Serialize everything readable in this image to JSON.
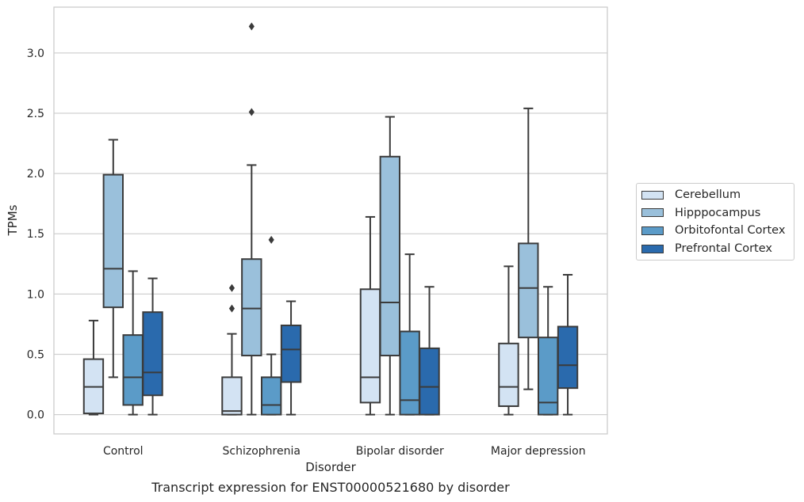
{
  "chart_data": {
    "type": "box",
    "title": "",
    "caption": "Transcript expression for ENST00000521680 by disorder",
    "xlabel": "Disorder",
    "ylabel": "TPMs",
    "ylim": [
      -0.16,
      3.38
    ],
    "yticks": [
      0.0,
      0.5,
      1.0,
      1.5,
      2.0,
      2.5,
      3.0
    ],
    "ytick_labels": [
      "0.0",
      "0.5",
      "1.0",
      "1.5",
      "2.0",
      "2.5",
      "3.0"
    ],
    "grid": true,
    "legend_position": "right",
    "categories": [
      "Control",
      "Schizophrenia",
      "Bipolar disorder",
      "Major depression"
    ],
    "series": [
      {
        "name": "Cerebellum",
        "color": "#d3e3f3",
        "boxes": [
          {
            "whislo": 0.0,
            "q1": 0.01,
            "med": 0.23,
            "q3": 0.46,
            "whishi": 0.78,
            "fliers": []
          },
          {
            "whislo": 0.0,
            "q1": 0.0,
            "med": 0.03,
            "q3": 0.31,
            "whishi": 0.67,
            "fliers": [
              0.88,
              1.05
            ]
          },
          {
            "whislo": 0.0,
            "q1": 0.1,
            "med": 0.31,
            "q3": 1.04,
            "whishi": 1.64,
            "fliers": []
          },
          {
            "whislo": 0.0,
            "q1": 0.07,
            "med": 0.23,
            "q3": 0.59,
            "whishi": 1.23,
            "fliers": []
          }
        ]
      },
      {
        "name": "Hipppocampus",
        "color": "#9ac0db",
        "boxes": [
          {
            "whislo": 0.31,
            "q1": 0.89,
            "med": 1.21,
            "q3": 1.99,
            "whishi": 2.28,
            "fliers": []
          },
          {
            "whislo": 0.0,
            "q1": 0.49,
            "med": 0.88,
            "q3": 1.29,
            "whishi": 2.07,
            "fliers": [
              2.51,
              3.22
            ]
          },
          {
            "whislo": 0.0,
            "q1": 0.49,
            "med": 0.93,
            "q3": 2.14,
            "whishi": 2.47,
            "fliers": []
          },
          {
            "whislo": 0.21,
            "q1": 0.64,
            "med": 1.05,
            "q3": 1.42,
            "whishi": 2.54,
            "fliers": []
          }
        ]
      },
      {
        "name": "Orbitofontal Cortex",
        "color": "#5b9bc8",
        "boxes": [
          {
            "whislo": 0.0,
            "q1": 0.08,
            "med": 0.31,
            "q3": 0.66,
            "whishi": 1.19,
            "fliers": []
          },
          {
            "whislo": 0.0,
            "q1": 0.0,
            "med": 0.08,
            "q3": 0.31,
            "whishi": 0.5,
            "fliers": [
              1.45
            ]
          },
          {
            "whislo": 0.0,
            "q1": 0.0,
            "med": 0.12,
            "q3": 0.69,
            "whishi": 1.33,
            "fliers": []
          },
          {
            "whislo": 0.0,
            "q1": 0.0,
            "med": 0.1,
            "q3": 0.64,
            "whishi": 1.06,
            "fliers": []
          }
        ]
      },
      {
        "name": "Prefrontal Cortex",
        "color": "#2a6aad",
        "boxes": [
          {
            "whislo": 0.0,
            "q1": 0.16,
            "med": 0.35,
            "q3": 0.85,
            "whishi": 1.13,
            "fliers": []
          },
          {
            "whislo": 0.0,
            "q1": 0.27,
            "med": 0.54,
            "q3": 0.74,
            "whishi": 0.94,
            "fliers": []
          },
          {
            "whislo": 0.0,
            "q1": 0.0,
            "med": 0.23,
            "q3": 0.55,
            "whishi": 1.06,
            "fliers": []
          },
          {
            "whislo": 0.0,
            "q1": 0.22,
            "med": 0.41,
            "q3": 0.73,
            "whishi": 1.16,
            "fliers": []
          }
        ]
      }
    ]
  }
}
